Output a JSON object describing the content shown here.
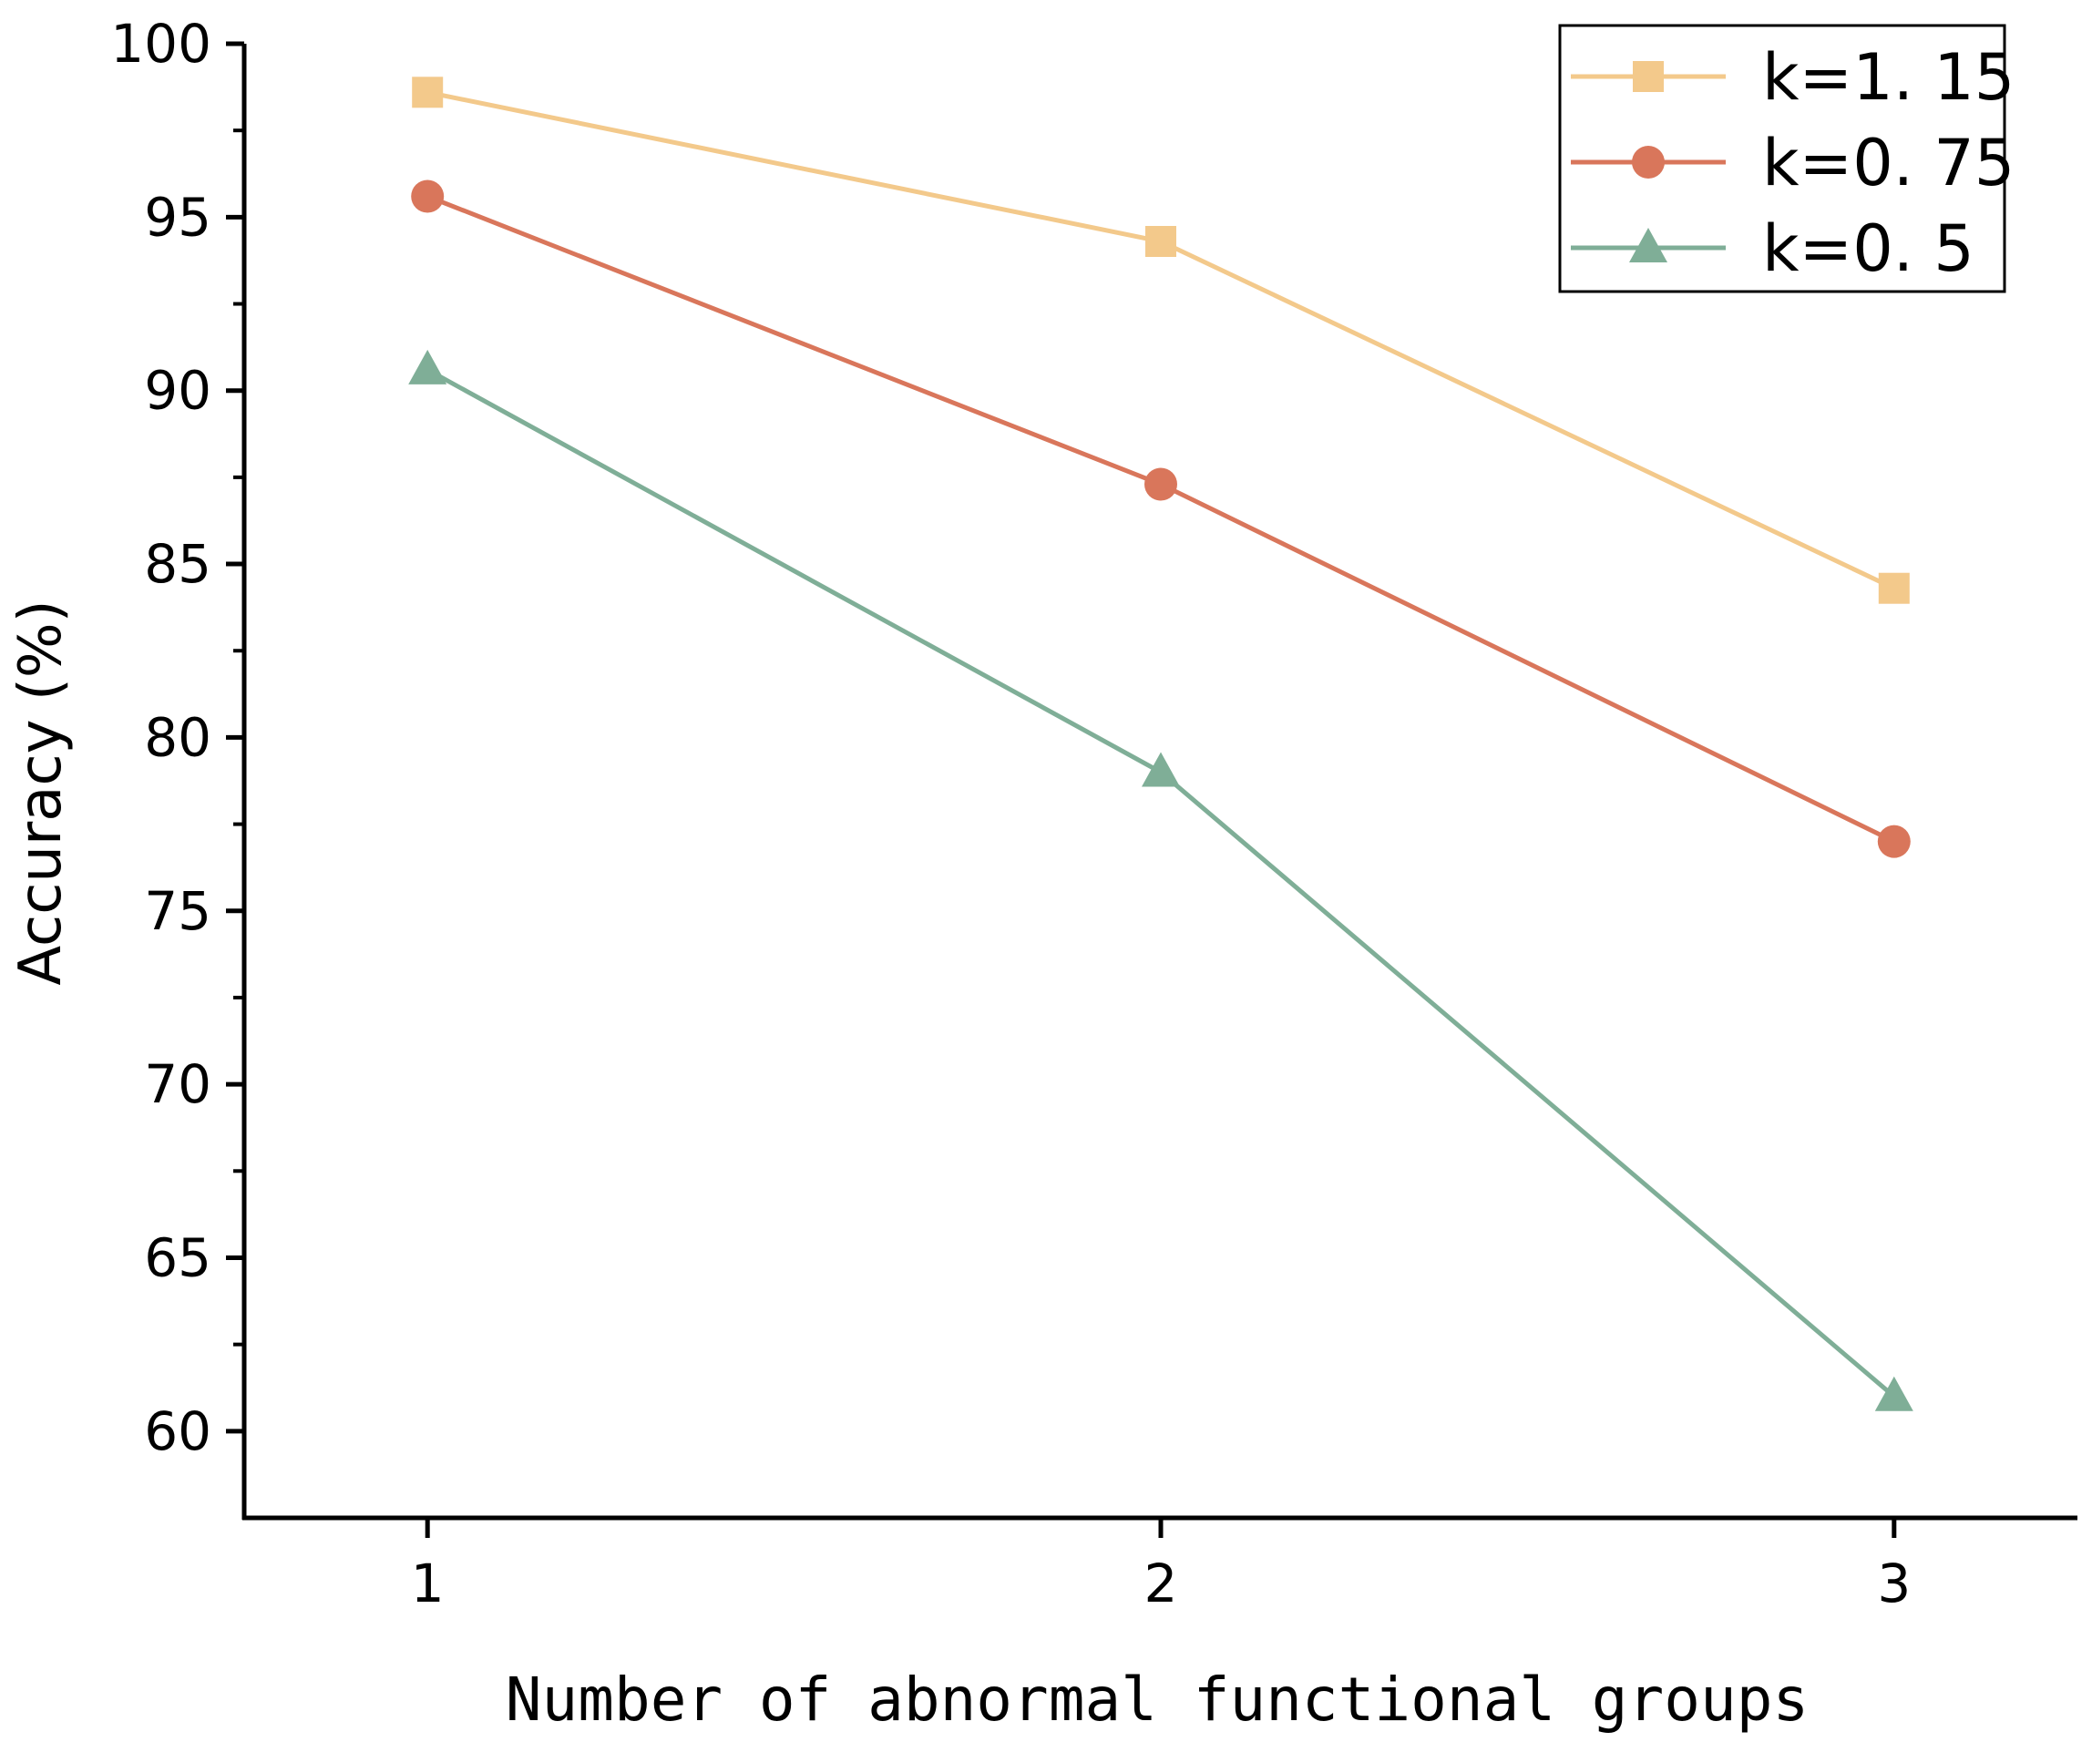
{
  "chart_data": {
    "type": "line",
    "title": "",
    "xlabel": "Number of abnormal functional groups",
    "ylabel": "Accuracy (%)",
    "x": [
      1,
      2,
      3
    ],
    "x_tick_labels": [
      "1",
      "2",
      "3"
    ],
    "xlim": [
      0.75,
      3.25
    ],
    "ylim": [
      57.5,
      100
    ],
    "y_ticks": [
      60,
      65,
      70,
      75,
      80,
      85,
      90,
      95,
      100
    ],
    "y_tick_labels": [
      "60",
      "65",
      "70",
      "75",
      "80",
      "85",
      "90",
      "95",
      "100"
    ],
    "grid": false,
    "legend_position": "top-right",
    "series": [
      {
        "name": "k=1.15",
        "label": "k=1. 15",
        "marker": "square",
        "color": "#F3C98B",
        "values": [
          98.6,
          94.3,
          84.3
        ]
      },
      {
        "name": "k=0.75",
        "label": "k=0. 75",
        "marker": "circle",
        "color": "#D9765B",
        "values": [
          95.6,
          87.3,
          77.0
        ]
      },
      {
        "name": "k=0.5",
        "label": "k=0. 5",
        "marker": "triangle",
        "color": "#7FAE97",
        "values": [
          90.6,
          79.0,
          61.0
        ]
      }
    ]
  }
}
